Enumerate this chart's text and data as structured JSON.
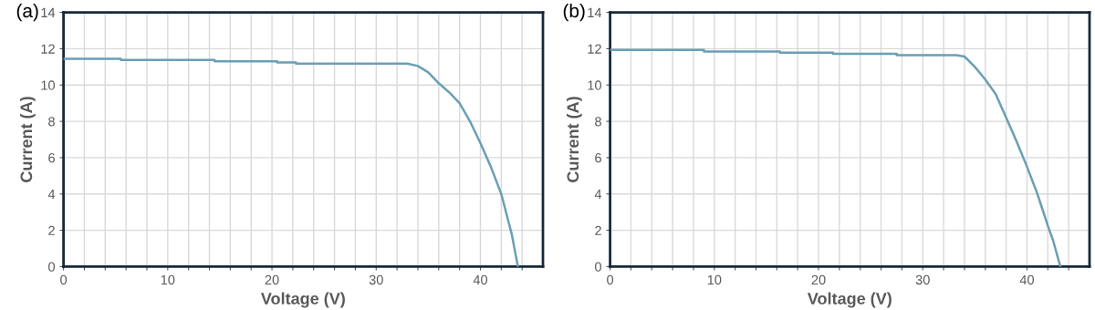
{
  "chart_data": [
    {
      "type": "line",
      "title": "(a)",
      "xlabel": "Voltage (V)",
      "ylabel": "Current (A)",
      "xlim": [
        0,
        46
      ],
      "ylim": [
        0,
        14
      ],
      "grid": true,
      "xticks": [
        0,
        {
          "value": 2,
          "label": null
        },
        {
          "value": 4,
          "label": null
        },
        {
          "value": 6,
          "label": null
        },
        {
          "value": 8,
          "label": null
        },
        10,
        {
          "value": 12,
          "label": null
        },
        {
          "value": 14,
          "label": null
        },
        {
          "value": 16,
          "label": null
        },
        {
          "value": 18,
          "label": null
        },
        20,
        {
          "value": 22,
          "label": null
        },
        {
          "value": 24,
          "label": null
        },
        {
          "value": 26,
          "label": null
        },
        {
          "value": 28,
          "label": null
        },
        30,
        {
          "value": 32,
          "label": null
        },
        {
          "value": 34,
          "label": null
        },
        {
          "value": 36,
          "label": null
        },
        {
          "value": 38,
          "label": null
        },
        40,
        {
          "value": 42,
          "label": null
        },
        {
          "value": 44,
          "label": null
        }
      ],
      "yticks": [
        0,
        2,
        4,
        6,
        8,
        10,
        12,
        14
      ],
      "series": [
        {
          "color": "#6a9fb5",
          "x": [
            0,
            5.5,
            5.5,
            14.5,
            14.5,
            20.5,
            20.5,
            22.3,
            22.3,
            33,
            34,
            35,
            36,
            37,
            38,
            39,
            40,
            41,
            42,
            43,
            43.6
          ],
          "values": [
            11.45,
            11.45,
            11.38,
            11.38,
            11.3,
            11.3,
            11.24,
            11.24,
            11.18,
            11.18,
            11.05,
            10.7,
            10.1,
            9.6,
            9.0,
            8.0,
            6.8,
            5.5,
            4.0,
            1.8,
            0
          ]
        }
      ]
    },
    {
      "type": "line",
      "title": "(b)",
      "xlabel": "Voltage (V)",
      "ylabel": "Current (A)",
      "xlim": [
        0,
        46
      ],
      "ylim": [
        0,
        14
      ],
      "grid": true,
      "xticks": [
        0,
        {
          "value": 2,
          "label": null
        },
        {
          "value": 4,
          "label": null
        },
        {
          "value": 6,
          "label": null
        },
        {
          "value": 8,
          "label": null
        },
        10,
        {
          "value": 12,
          "label": null
        },
        {
          "value": 14,
          "label": null
        },
        {
          "value": 16,
          "label": null
        },
        {
          "value": 18,
          "label": null
        },
        20,
        {
          "value": 22,
          "label": null
        },
        {
          "value": 24,
          "label": null
        },
        {
          "value": 26,
          "label": null
        },
        {
          "value": 28,
          "label": null
        },
        30,
        {
          "value": 32,
          "label": null
        },
        {
          "value": 34,
          "label": null
        },
        {
          "value": 36,
          "label": null
        },
        {
          "value": 38,
          "label": null
        },
        40,
        {
          "value": 42,
          "label": null
        },
        {
          "value": 44,
          "label": null
        }
      ],
      "yticks": [
        0,
        2,
        4,
        6,
        8,
        10,
        12,
        14
      ],
      "series": [
        {
          "color": "#6a9fb5",
          "x": [
            0,
            9,
            9,
            16.3,
            16.3,
            21.4,
            21.4,
            27.5,
            27.5,
            33.2,
            34,
            35,
            36,
            37,
            38,
            39,
            40,
            41,
            42,
            42.5,
            43.2
          ],
          "values": [
            11.93,
            11.93,
            11.85,
            11.85,
            11.78,
            11.78,
            11.72,
            11.72,
            11.65,
            11.65,
            11.57,
            11.0,
            10.3,
            9.5,
            8.2,
            6.9,
            5.5,
            4.0,
            2.25,
            1.45,
            0
          ]
        }
      ]
    }
  ]
}
